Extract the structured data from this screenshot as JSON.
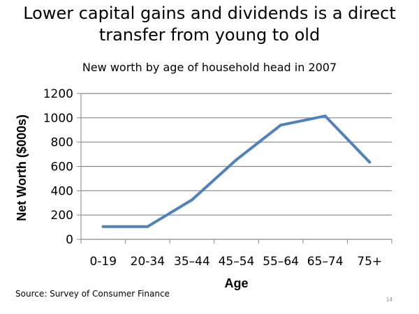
{
  "slide": {
    "title_line1": "Lower capital gains and dividends is a direct",
    "title_line2": "transfer from young to old",
    "source": "Source: Survey of Consumer Finance",
    "page_number": "14"
  },
  "colors": {
    "series": "#4f81bd",
    "grid": "#868686",
    "axis": "#868686"
  },
  "chart_data": {
    "type": "line",
    "title": "New worth by age of household head in 2007",
    "xlabel": "Age",
    "ylabel": "Net Worth ($000s)",
    "categories": [
      "0-19",
      "20-34",
      "35–44",
      "45–54",
      "55–64",
      "65–74",
      "75+"
    ],
    "series": [
      {
        "values": [
          105,
          105,
          325,
          655,
          940,
          1015,
          635
        ]
      }
    ],
    "ylim": [
      0,
      1200
    ],
    "yticks": [
      0,
      200,
      400,
      600,
      800,
      1000,
      1200
    ],
    "grid": true,
    "legend": "none"
  }
}
